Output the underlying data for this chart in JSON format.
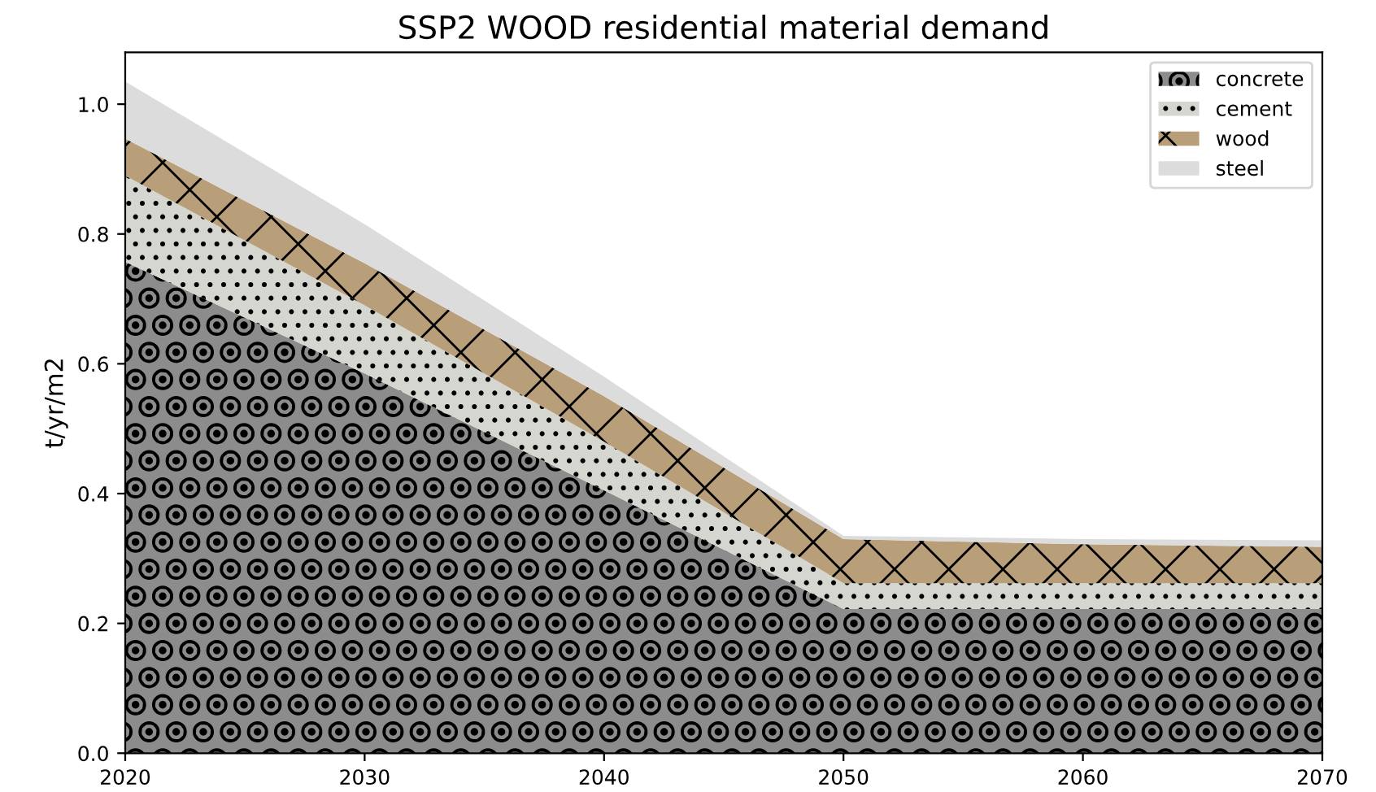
{
  "chart_data": {
    "type": "area",
    "stacked": true,
    "title": "SSP2 WOOD residential material demand",
    "ylabel": "t/yr/m2",
    "x": [
      2020,
      2030,
      2040,
      2050,
      2060,
      2070
    ],
    "series": [
      {
        "name": "concrete",
        "color": "#8c8c8c",
        "values": [
          0.757,
          0.585,
          0.405,
          0.222,
          0.222,
          0.222
        ]
      },
      {
        "name": "cement",
        "color": "#d6d6d0",
        "values": [
          0.133,
          0.105,
          0.075,
          0.04,
          0.04,
          0.04
        ]
      },
      {
        "name": "wood",
        "color": "#b89f7a",
        "values": [
          0.057,
          0.065,
          0.07,
          0.068,
          0.06,
          0.056
        ]
      },
      {
        "name": "steel",
        "color": "#dcdcdc",
        "values": [
          0.088,
          0.06,
          0.03,
          0.005,
          0.008,
          0.01
        ]
      }
    ],
    "xlim": [
      2020,
      2070
    ],
    "ylim": [
      0,
      1.08
    ],
    "xticks": [
      2020,
      2030,
      2040,
      2050,
      2060,
      2070
    ],
    "yticks": [
      {
        "value": 0,
        "label": "0.0"
      },
      {
        "value": 0.2,
        "label": "0.2"
      },
      {
        "value": 0.4,
        "label": "0.4"
      },
      {
        "value": 0.6,
        "label": "0.6"
      },
      {
        "value": 0.8,
        "label": "0.8"
      },
      {
        "value": 1.0,
        "label": "1.0"
      }
    ],
    "grid": false,
    "legend": "top right"
  }
}
